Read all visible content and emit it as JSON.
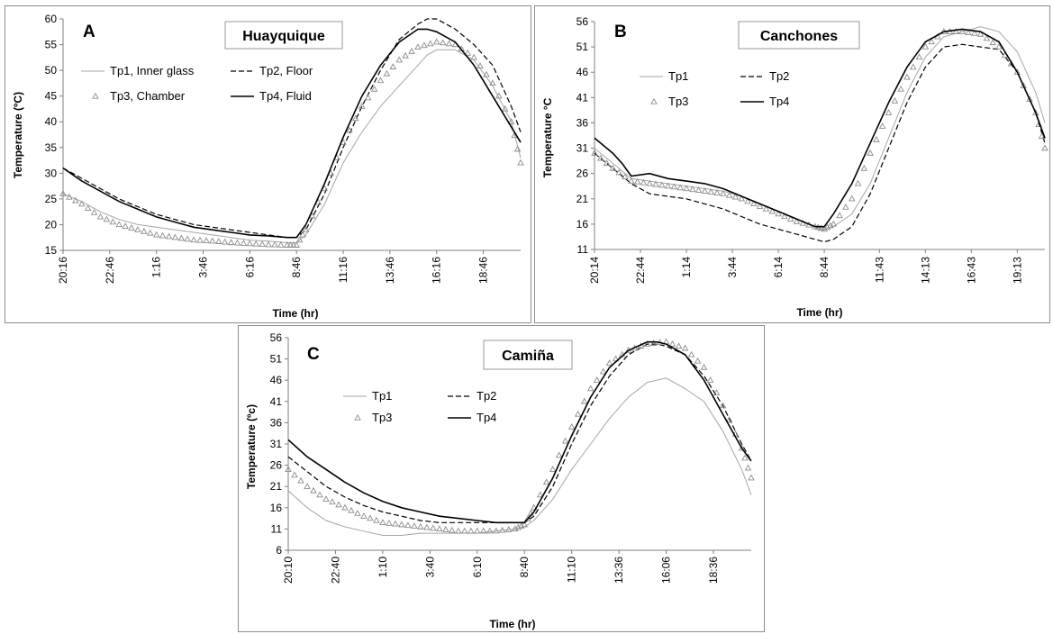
{
  "chart_data": [
    {
      "type": "line",
      "panel_label": "A",
      "title": "Huayquique",
      "xlabel": "Time (hr)",
      "ylabel": "Temperature (ºC)",
      "ylim": [
        15,
        60
      ],
      "yticks": [
        15,
        20,
        25,
        30,
        35,
        40,
        45,
        50,
        55,
        60
      ],
      "xlim": [
        0,
        24.5
      ],
      "xtick_values": [
        0,
        2.5,
        5,
        7.5,
        10,
        12.5,
        15,
        17.5,
        20,
        22.5
      ],
      "xtick_labels": [
        "20:16",
        "22:46",
        "1:16",
        "3:46",
        "6:16",
        "8:46",
        "11:16",
        "13:46",
        "16:16",
        "18:46"
      ],
      "legend_placement": "top-left",
      "grid": false,
      "series": [
        {
          "name": "Tp1, Inner glass",
          "style": "thin-solid",
          "color": "#a6a6a6",
          "x": [
            0,
            1,
            2,
            3,
            4,
            5,
            6,
            7,
            8,
            9,
            10,
            11,
            12,
            12.5,
            13,
            14,
            15,
            16,
            17,
            18,
            19,
            19.5,
            20,
            21,
            22,
            23,
            24,
            24.5
          ],
          "y": [
            26,
            24.5,
            22.5,
            21,
            20,
            19.5,
            19,
            18.5,
            18,
            17.5,
            17,
            16.8,
            16.5,
            16.5,
            18,
            24,
            32,
            38,
            43,
            47,
            51,
            53,
            54,
            54,
            52,
            47,
            40,
            33
          ]
        },
        {
          "name": "Tp2, Floor",
          "style": "dashed",
          "color": "#000000",
          "x": [
            0,
            1,
            2,
            3,
            4,
            5,
            6,
            7,
            8,
            9,
            10,
            11,
            12,
            12.5,
            13,
            14,
            15,
            16,
            17,
            18,
            19,
            19.5,
            20,
            20.5,
            21,
            22,
            23,
            24,
            24.5
          ],
          "y": [
            31,
            29,
            27,
            25,
            23.5,
            22,
            21,
            20,
            19.5,
            19,
            18.5,
            18,
            17.5,
            17.5,
            19,
            26,
            35,
            43,
            50,
            56,
            59,
            60,
            60,
            59,
            58,
            55,
            51,
            43,
            38
          ]
        },
        {
          "name": "Tp3, Chamber",
          "style": "triangles",
          "color": "#8c8c8c",
          "x": [
            0,
            1,
            2,
            3,
            4,
            5,
            6,
            7,
            8,
            9,
            10,
            11,
            12,
            12.5,
            13,
            14,
            15,
            16,
            17,
            18,
            19,
            20,
            21,
            22,
            23,
            24,
            24.5
          ],
          "y": [
            26,
            24,
            21.5,
            20,
            19,
            18,
            17.5,
            17,
            16.8,
            16.5,
            16.3,
            16.1,
            16,
            16,
            19,
            27,
            36,
            43,
            48,
            52,
            54.5,
            55.5,
            55,
            52.5,
            47.5,
            40,
            32
          ]
        },
        {
          "name": "Tp4, Fluid",
          "style": "solid",
          "color": "#000000",
          "x": [
            0,
            1,
            2,
            3,
            4,
            5,
            6,
            7,
            8,
            9,
            10,
            11,
            12,
            12.5,
            13,
            14,
            15,
            16,
            17,
            18,
            19,
            19.5,
            20,
            21,
            22,
            23,
            24,
            24.5
          ],
          "y": [
            31,
            28.5,
            26.5,
            24.5,
            23,
            21.5,
            20.5,
            19.5,
            19,
            18.5,
            18,
            17.8,
            17.5,
            17.5,
            20,
            28,
            37,
            45,
            51,
            55.5,
            58,
            58,
            57.5,
            55.5,
            51,
            45,
            39,
            36
          ]
        }
      ]
    },
    {
      "type": "line",
      "panel_label": "B",
      "title": "Canchones",
      "xlabel": "Time (hr)",
      "ylabel": "Temperature °C",
      "ylim": [
        11,
        56
      ],
      "yticks": [
        11,
        16,
        21,
        26,
        31,
        36,
        41,
        46,
        51,
        56
      ],
      "xlim": [
        0,
        24.5
      ],
      "xtick_values": [
        0,
        2.5,
        5,
        7.5,
        10,
        12.5,
        15.5,
        18,
        20.5,
        23
      ],
      "xtick_labels": [
        "20:14",
        "22:44",
        "1:14",
        "3:44",
        "6:14",
        "8:44",
        "11:43",
        "14:13",
        "16:43",
        "19:13"
      ],
      "legend_placement": "top-left",
      "grid": false,
      "series": [
        {
          "name": "Tp1",
          "style": "thin-solid",
          "color": "#a6a6a6",
          "x": [
            0,
            1,
            2,
            3,
            4,
            5,
            6,
            7,
            8,
            9,
            10,
            11,
            12,
            12.5,
            13,
            14,
            15,
            16,
            17,
            18,
            19,
            20,
            21,
            22,
            23,
            24,
            24.5
          ],
          "y": [
            31,
            28,
            25,
            24.5,
            24,
            23.5,
            23,
            22.5,
            21.5,
            20,
            18.5,
            17,
            15.5,
            15,
            15.5,
            18,
            24,
            33,
            42,
            49,
            53,
            54,
            55,
            54,
            50,
            42,
            36
          ]
        },
        {
          "name": "Tp2",
          "style": "dashed",
          "color": "#000000",
          "x": [
            0,
            1,
            2,
            3,
            4,
            5,
            6,
            7,
            8,
            9,
            10,
            11,
            12,
            12.5,
            13,
            14,
            15,
            16,
            17,
            18,
            19,
            20,
            21,
            22,
            23,
            24,
            24.5
          ],
          "y": [
            30,
            27,
            24,
            22,
            21.5,
            21,
            20,
            19,
            17.5,
            16,
            15,
            14,
            13,
            12.5,
            13,
            15.5,
            22,
            31,
            40,
            47,
            51,
            51.5,
            51,
            50.5,
            46,
            38,
            32
          ]
        },
        {
          "name": "Tp3",
          "style": "triangles",
          "color": "#8c8c8c",
          "x": [
            0,
            1,
            2,
            3,
            4,
            5,
            6,
            7,
            8,
            9,
            10,
            11,
            12,
            12.5,
            13,
            14,
            15,
            16,
            17,
            18,
            19,
            20,
            21,
            22,
            23,
            24,
            24.5
          ],
          "y": [
            30,
            27,
            24.5,
            24,
            23.5,
            23,
            22.5,
            22,
            21,
            19.5,
            18,
            16.5,
            15.5,
            15,
            16,
            21,
            30,
            38,
            45,
            51,
            54,
            54,
            53.5,
            51,
            46,
            38,
            31
          ]
        },
        {
          "name": "Tp4",
          "style": "solid",
          "color": "#000000",
          "x": [
            0,
            1,
            1.5,
            2,
            3,
            4,
            5,
            6,
            7,
            8,
            9,
            10,
            11,
            12,
            12.5,
            13,
            14,
            15,
            16,
            17,
            18,
            19,
            20,
            21,
            22,
            23,
            24,
            24.5
          ],
          "y": [
            33,
            30,
            28,
            25.5,
            26,
            25,
            24.5,
            24,
            23,
            21.5,
            20,
            18.5,
            17,
            15.5,
            15.5,
            18,
            24,
            32,
            40,
            47,
            52,
            54,
            54.5,
            54,
            52,
            46,
            38,
            33
          ]
        }
      ]
    },
    {
      "type": "line",
      "panel_label": "C",
      "title": "Camiña",
      "xlabel": "Time (hr)",
      "ylabel": "Temperature (ºc)",
      "ylim": [
        6,
        56
      ],
      "yticks": [
        6,
        11,
        16,
        21,
        26,
        31,
        36,
        41,
        46,
        51,
        56
      ],
      "xlim": [
        0,
        24.5
      ],
      "xtick_values": [
        0,
        2.5,
        5,
        7.5,
        10,
        12.5,
        15,
        17.5,
        20,
        22.5
      ],
      "xtick_labels": [
        "20:10",
        "22:40",
        "1:10",
        "3:40",
        "6:10",
        "8:40",
        "11:10",
        "13:36",
        "16:06",
        "18:36"
      ],
      "legend_placement": "top-left",
      "grid": false,
      "series": [
        {
          "name": "Tp1",
          "style": "thin-solid",
          "color": "#a6a6a6",
          "x": [
            0,
            1,
            2,
            3,
            4,
            5,
            6,
            7,
            8,
            9,
            10,
            11,
            12,
            12.5,
            13,
            14,
            15,
            16,
            17,
            18,
            19,
            20,
            21,
            22,
            23,
            24,
            24.5
          ],
          "y": [
            20,
            16,
            13,
            11.5,
            10.5,
            9.5,
            9.5,
            10,
            10,
            10,
            10,
            10.5,
            11,
            11.5,
            13,
            18,
            25,
            31,
            37,
            42,
            45.5,
            46.5,
            44,
            41,
            34,
            25,
            19
          ]
        },
        {
          "name": "Tp2",
          "style": "dashed",
          "color": "#000000",
          "x": [
            0,
            1,
            2,
            3,
            4,
            5,
            6,
            7,
            8,
            9,
            10,
            11,
            12,
            12.5,
            13,
            14,
            15,
            16,
            17,
            18,
            19,
            19.5,
            20,
            21,
            22,
            23,
            24,
            24.5
          ],
          "y": [
            28,
            24.5,
            21,
            18.5,
            16.5,
            15,
            14,
            13,
            12.5,
            12.5,
            12.5,
            12.5,
            12.5,
            12.5,
            14,
            21,
            31,
            40,
            47,
            52,
            54.5,
            54.5,
            54,
            52,
            47,
            40,
            31,
            27
          ]
        },
        {
          "name": "Tp3",
          "style": "triangles",
          "color": "#8c8c8c",
          "x": [
            0,
            1,
            2,
            3,
            4,
            5,
            6,
            7,
            8,
            9,
            10,
            11,
            12,
            12.5,
            13,
            14,
            15,
            16,
            17,
            18,
            19,
            20,
            21,
            22,
            23,
            24,
            24.5
          ],
          "y": [
            25,
            21,
            18,
            16,
            14,
            12.5,
            12,
            11.5,
            11,
            10.5,
            10.5,
            10.5,
            11,
            12,
            16,
            25,
            35,
            44,
            50,
            53,
            54.5,
            55,
            53.5,
            49,
            40,
            30,
            23
          ]
        },
        {
          "name": "Tp4",
          "style": "solid",
          "color": "#000000",
          "x": [
            0,
            1,
            2,
            3,
            4,
            5,
            6,
            7,
            8,
            9,
            10,
            11,
            12,
            12.5,
            13,
            14,
            15,
            16,
            17,
            18,
            19,
            19.5,
            20,
            21,
            22,
            23,
            24,
            24.5
          ],
          "y": [
            32,
            28,
            25,
            22,
            19.5,
            17.5,
            16,
            15,
            14,
            13.5,
            13,
            12.5,
            12.5,
            12.5,
            15,
            23,
            33,
            42,
            49,
            53,
            55,
            55,
            54.5,
            52,
            46,
            38,
            30,
            27
          ]
        }
      ]
    }
  ]
}
